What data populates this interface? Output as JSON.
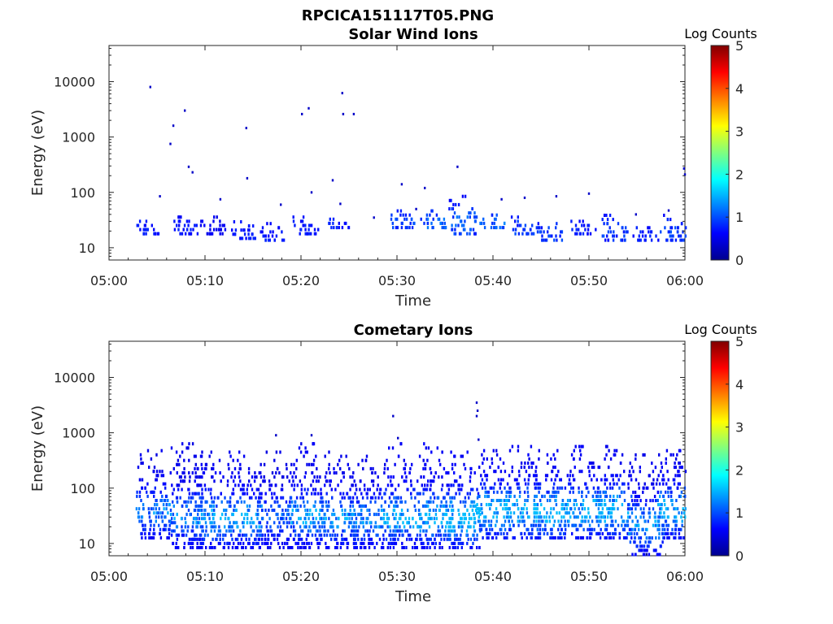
{
  "figure": {
    "title": "RPCICA151117T05.PNG"
  },
  "chart_data": [
    {
      "type": "heatmap",
      "title": "Solar Wind Ions",
      "xlabel": "Time",
      "ylabel": "Energy (eV)",
      "x_ticks": [
        "05:00",
        "05:10",
        "05:20",
        "05:30",
        "05:40",
        "05:50",
        "06:00"
      ],
      "y_ticks": [
        "10",
        "100",
        "1000",
        "10000"
      ],
      "y_scale": "log",
      "ylim": [
        6,
        45000
      ],
      "xlim": [
        "05:00",
        "06:00"
      ],
      "colorbar": {
        "label": "Log Counts",
        "min": 0,
        "max": 5,
        "ticks": [
          "0",
          "1",
          "2",
          "3",
          "4",
          "5"
        ]
      },
      "clusters": [
        {
          "t": 4.2,
          "e_low": 17,
          "e_high": 32,
          "intensity": 0.2
        },
        {
          "t": 8.0,
          "e_low": 17,
          "e_high": 35,
          "intensity": 0.2
        },
        {
          "t": 11.0,
          "e_low": 17,
          "e_high": 35,
          "intensity": 0.1
        },
        {
          "t": 14.2,
          "e_low": 14,
          "e_high": 30,
          "intensity": 0.2
        },
        {
          "t": 17.3,
          "e_low": 13,
          "e_high": 28,
          "intensity": 0.2
        },
        {
          "t": 20.6,
          "e_low": 17,
          "e_high": 35,
          "intensity": 0.2
        },
        {
          "t": 24.0,
          "e_low": 22,
          "e_high": 32,
          "intensity": 0.2
        },
        {
          "t": 30.6,
          "e_low": 22,
          "e_high": 50,
          "intensity": 0.3
        },
        {
          "t": 34.0,
          "e_low": 22,
          "e_high": 45,
          "intensity": 0.4
        },
        {
          "t": 37.0,
          "e_low": 17,
          "e_high": 90,
          "intensity": 0.4
        },
        {
          "t": 40.0,
          "e_low": 22,
          "e_high": 40,
          "intensity": 0.4
        },
        {
          "t": 43.2,
          "e_low": 17,
          "e_high": 35,
          "intensity": 0.3
        },
        {
          "t": 46.0,
          "e_low": 13,
          "e_high": 32,
          "intensity": 0.3
        },
        {
          "t": 49.5,
          "e_low": 17,
          "e_high": 30,
          "intensity": 0.2
        },
        {
          "t": 52.7,
          "e_low": 13,
          "e_high": 40,
          "intensity": 0.3
        },
        {
          "t": 56.0,
          "e_low": 13,
          "e_high": 25,
          "intensity": 0.2
        },
        {
          "t": 59.0,
          "e_low": 13,
          "e_high": 40,
          "intensity": 0.3
        }
      ],
      "isolated_points": [
        {
          "t": 4.2,
          "e": 8000
        },
        {
          "t": 7.8,
          "e": 3000
        },
        {
          "t": 6.6,
          "e": 1600
        },
        {
          "t": 6.3,
          "e": 750
        },
        {
          "t": 8.2,
          "e": 290
        },
        {
          "t": 8.6,
          "e": 230
        },
        {
          "t": 14.2,
          "e": 1450
        },
        {
          "t": 14.3,
          "e": 180
        },
        {
          "t": 20.0,
          "e": 2600
        },
        {
          "t": 20.7,
          "e": 3300
        },
        {
          "t": 24.2,
          "e": 6200
        },
        {
          "t": 24.3,
          "e": 2600
        },
        {
          "t": 25.4,
          "e": 2600
        },
        {
          "t": 23.2,
          "e": 165
        },
        {
          "t": 30.4,
          "e": 140
        },
        {
          "t": 36.2,
          "e": 290
        },
        {
          "t": 59.8,
          "e": 270
        },
        {
          "t": 59.9,
          "e": 210
        },
        {
          "t": 5.2,
          "e": 85
        },
        {
          "t": 11.5,
          "e": 75
        },
        {
          "t": 17.8,
          "e": 60
        },
        {
          "t": 21.0,
          "e": 100
        },
        {
          "t": 24.0,
          "e": 62
        },
        {
          "t": 32.8,
          "e": 120
        },
        {
          "t": 40.8,
          "e": 75
        },
        {
          "t": 43.2,
          "e": 80
        },
        {
          "t": 46.5,
          "e": 85
        },
        {
          "t": 49.9,
          "e": 95
        },
        {
          "t": 58.2,
          "e": 47
        },
        {
          "t": 27.5,
          "e": 35
        },
        {
          "t": 31.9,
          "e": 50
        },
        {
          "t": 54.8,
          "e": 40
        }
      ]
    },
    {
      "type": "heatmap",
      "title": "Cometary Ions",
      "xlabel": "Time",
      "ylabel": "Energy (eV)",
      "x_ticks": [
        "05:00",
        "05:10",
        "05:20",
        "05:30",
        "05:40",
        "05:50",
        "06:00"
      ],
      "y_ticks": [
        "10",
        "100",
        "1000",
        "10000"
      ],
      "y_scale": "log",
      "ylim": [
        6,
        45000
      ],
      "xlim": [
        "05:00",
        "06:00"
      ],
      "colorbar": {
        "label": "Log Counts",
        "min": 0,
        "max": 5,
        "ticks": [
          "0",
          "1",
          "2",
          "3",
          "4",
          "5"
        ]
      },
      "clusters": [
        {
          "t": 4.8,
          "e_low": 12,
          "e_high": 500,
          "intensity": 0.5
        },
        {
          "t": 8.2,
          "e_low": 8,
          "e_high": 600,
          "intensity": 0.5
        },
        {
          "t": 11.0,
          "e_low": 8,
          "e_high": 500,
          "intensity": 0.6
        },
        {
          "t": 14.2,
          "e_low": 8,
          "e_high": 500,
          "intensity": 0.6
        },
        {
          "t": 17.5,
          "e_low": 8,
          "e_high": 500,
          "intensity": 0.4
        },
        {
          "t": 20.8,
          "e_low": 8,
          "e_high": 600,
          "intensity": 0.6
        },
        {
          "t": 24.0,
          "e_low": 8,
          "e_high": 450,
          "intensity": 0.55
        },
        {
          "t": 27.0,
          "e_low": 8,
          "e_high": 400,
          "intensity": 0.5
        },
        {
          "t": 30.5,
          "e_low": 8,
          "e_high": 600,
          "intensity": 0.65
        },
        {
          "t": 34.0,
          "e_low": 8,
          "e_high": 600,
          "intensity": 0.7
        },
        {
          "t": 37.0,
          "e_low": 8,
          "e_high": 500,
          "intensity": 0.75
        },
        {
          "t": 40.2,
          "e_low": 12,
          "e_high": 500,
          "intensity": 0.7
        },
        {
          "t": 43.3,
          "e_low": 12,
          "e_high": 600,
          "intensity": 0.7
        },
        {
          "t": 46.2,
          "e_low": 12,
          "e_high": 500,
          "intensity": 0.7
        },
        {
          "t": 49.6,
          "e_low": 12,
          "e_high": 600,
          "intensity": 0.65
        },
        {
          "t": 52.8,
          "e_low": 12,
          "e_high": 600,
          "intensity": 0.7
        },
        {
          "t": 56.0,
          "e_low": 6,
          "e_high": 400,
          "intensity": 0.55
        },
        {
          "t": 59.0,
          "e_low": 12,
          "e_high": 600,
          "intensity": 0.65
        }
      ],
      "isolated_points": [
        {
          "t": 17.3,
          "e": 900
        },
        {
          "t": 21.0,
          "e": 900
        },
        {
          "t": 29.5,
          "e": 2000
        },
        {
          "t": 30.0,
          "e": 800
        },
        {
          "t": 38.2,
          "e": 3500
        },
        {
          "t": 38.3,
          "e": 2500
        },
        {
          "t": 38.2,
          "e": 2000
        },
        {
          "t": 38.4,
          "e": 750
        }
      ]
    }
  ]
}
